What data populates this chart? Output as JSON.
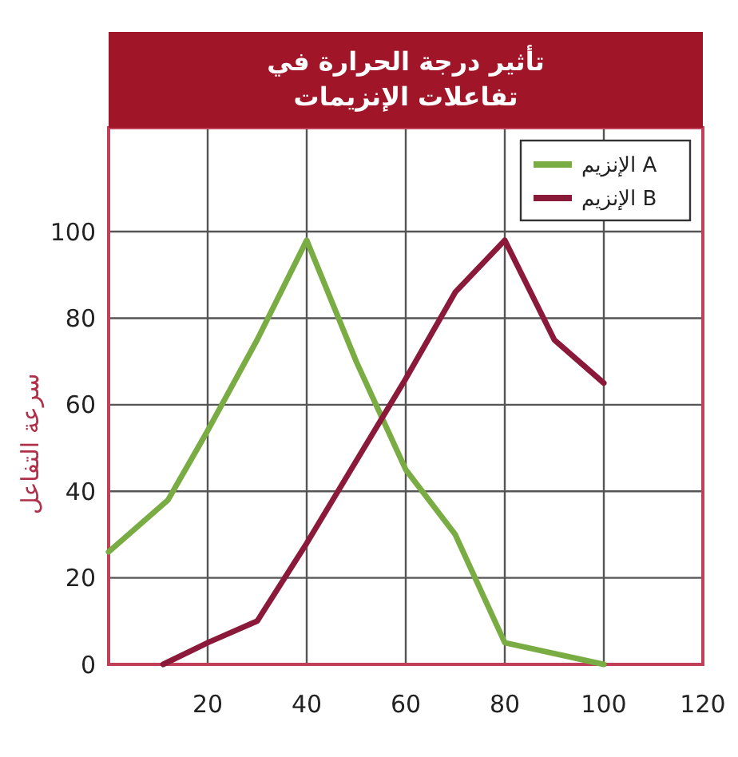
{
  "chart_data": {
    "type": "line",
    "title": "تأثير درجة الحرارة في\nتفاعلات الإنزيمات",
    "ylabel": "سرعة التفاعل",
    "xlim": [
      0,
      120
    ],
    "ylim": [
      0,
      124
    ],
    "xticks": [
      {
        "value": 0,
        "label": null
      },
      20,
      40,
      60,
      80,
      100,
      120
    ],
    "yticks": [
      0,
      20,
      40,
      60,
      80,
      100
    ],
    "grid": true,
    "legend": "top right",
    "marker": "none",
    "line_style": "solid",
    "series": [
      {
        "name": "الإنزيم A",
        "color": "#7aac44",
        "x": [
          0,
          12,
          20,
          30,
          40,
          50,
          60,
          70,
          80,
          100
        ],
        "values": [
          26,
          38,
          54,
          75,
          98,
          70,
          45,
          30,
          5,
          0
        ]
      },
      {
        "name": "الإنزيم B",
        "color": "#8b1a3a",
        "x": [
          11,
          20,
          30,
          40,
          50,
          60,
          70,
          80,
          90,
          100
        ],
        "values": [
          0,
          5,
          10,
          28,
          47,
          66,
          86,
          98,
          75,
          65
        ]
      }
    ]
  }
}
